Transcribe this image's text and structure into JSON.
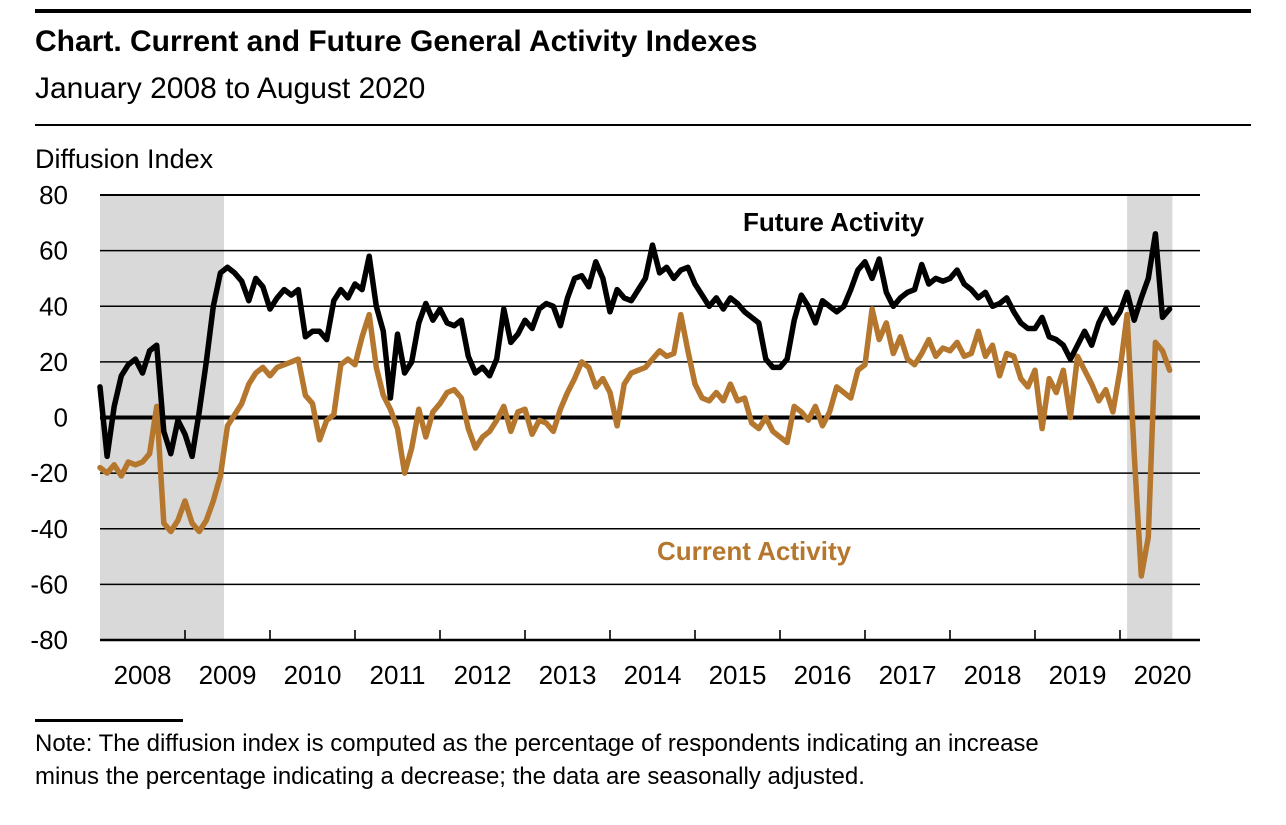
{
  "header": {
    "title": "Chart. Current and Future General Activity Indexes",
    "subtitle": "January 2008 to August 2020"
  },
  "axis_title": "Diffusion Index",
  "note": {
    "line1": "Note: The diffusion index is computed as the percentage of respondents indicating an increase",
    "line2": "minus the percentage indicating a decrease; the data are seasonally adjusted."
  },
  "chart_data": {
    "type": "line",
    "title": "Current and Future General Activity Indexes",
    "period": "January 2008 to August 2020",
    "frequency": "monthly",
    "x_start": "2008-01",
    "x_end": "2020-08",
    "ylabel": "Diffusion Index",
    "ylim": [
      -80,
      80
    ],
    "yticks": [
      80,
      60,
      40,
      20,
      0,
      -20,
      -40,
      -60,
      -80
    ],
    "xticks": [
      "2008",
      "2009",
      "2010",
      "2011",
      "2012",
      "2013",
      "2014",
      "2015",
      "2016",
      "2017",
      "2018",
      "2019",
      "2020"
    ],
    "grid": "horizontal",
    "legend_position": "inline-labels",
    "band_color": "#d9d9d9",
    "recession_bands": [
      {
        "label": "Recession Jan 2008 to Jun 2009",
        "start_month_index": 0,
        "end_month_index": 17.5
      },
      {
        "label": "Recession Feb 2020 to Aug 2020",
        "start_month_index": 145,
        "end_month_index": 151.4
      }
    ],
    "series": [
      {
        "name": "Future Activity",
        "color": "#000000",
        "values": [
          11,
          -14,
          4,
          15,
          19,
          21,
          16,
          24,
          26,
          -5,
          -13,
          -1,
          -6,
          -14,
          2,
          20,
          40,
          52,
          54,
          52,
          49,
          42,
          50,
          47,
          39,
          43,
          46,
          44,
          46,
          29,
          31,
          31,
          28,
          42,
          46,
          43,
          48,
          46,
          58,
          40,
          31,
          7,
          30,
          16,
          20,
          34,
          41,
          35,
          39,
          34,
          33,
          35,
          22,
          16,
          18,
          15,
          21,
          39,
          27,
          30,
          35,
          32,
          39,
          41,
          40,
          33,
          43,
          50,
          51,
          47,
          56,
          50,
          38,
          46,
          43,
          42,
          46,
          50,
          62,
          52,
          54,
          50,
          53,
          54,
          48,
          44,
          40,
          43,
          39,
          43,
          41,
          38,
          36,
          34,
          21,
          18,
          18,
          21,
          35,
          44,
          40,
          34,
          42,
          40,
          38,
          40,
          46,
          53,
          56,
          50,
          57,
          45,
          40,
          43,
          45,
          46,
          55,
          48,
          50,
          49,
          50,
          53,
          48,
          46,
          43,
          45,
          40,
          41,
          43,
          38,
          34,
          32,
          32,
          36,
          29,
          28,
          26,
          21,
          26,
          31,
          26,
          34,
          39,
          34,
          38,
          45,
          35,
          43,
          50,
          66,
          36,
          39
        ]
      },
      {
        "name": "Current Activity",
        "color": "#b5762d",
        "values": [
          -18,
          -20,
          -17,
          -21,
          -16,
          -17,
          -16,
          -13,
          4,
          -38,
          -41,
          -37,
          -30,
          -38,
          -41,
          -37,
          -30,
          -21,
          -3,
          1,
          5,
          12,
          16,
          18,
          15,
          18,
          19,
          20,
          21,
          8,
          5,
          -8,
          -1,
          1,
          19,
          21,
          19,
          29,
          37,
          18,
          8,
          3,
          -4,
          -20,
          -11,
          3,
          -7,
          2,
          5,
          9,
          10,
          7,
          -4,
          -11,
          -7,
          -5,
          -1,
          4,
          -5,
          2,
          3,
          -6,
          -1,
          -2,
          -5,
          3,
          9,
          14,
          20,
          18,
          11,
          14,
          9,
          -3,
          12,
          16,
          17,
          18,
          21,
          24,
          22,
          23,
          37,
          24,
          12,
          7,
          6,
          9,
          6,
          12,
          6,
          7,
          -2,
          -4,
          0,
          -5,
          -7,
          -9,
          4,
          2,
          -1,
          4,
          -3,
          2,
          11,
          9,
          7,
          17,
          19,
          39,
          28,
          34,
          23,
          29,
          21,
          19,
          23,
          28,
          22,
          25,
          24,
          27,
          22,
          23,
          31,
          22,
          26,
          15,
          23,
          22,
          14,
          11,
          17,
          -4,
          14,
          9,
          17,
          0,
          22,
          17,
          12,
          6,
          10,
          2,
          17,
          37,
          -13,
          -57,
          -43,
          27,
          24,
          17
        ]
      }
    ]
  }
}
